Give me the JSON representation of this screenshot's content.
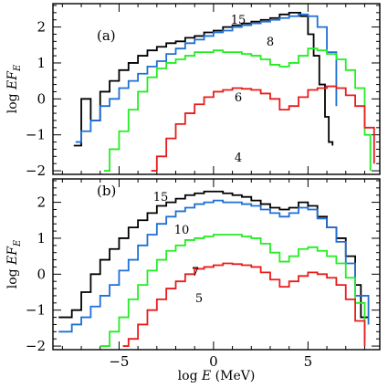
{
  "chart_data": {
    "type": "line",
    "xlabel": "log  E  (MeV)",
    "xlim": [
      -8.5,
      8.8
    ],
    "x_ticks": [
      -5,
      0,
      5
    ],
    "ylim": [
      -2.1,
      2.65
    ],
    "y_ticks": [
      -2,
      -1,
      0,
      1,
      2
    ],
    "grid": false,
    "panels": [
      {
        "label": "(a)",
        "ylabel": "log  EF_E",
        "series": [
          {
            "name": "15",
            "color": "#000000",
            "x": [
              -7.4,
              -7.0,
              -6.5,
              -6.0,
              -5.5,
              -5.0,
              -4.5,
              -4.0,
              -3.5,
              -3.0,
              -2.5,
              -2.0,
              -1.5,
              -1.0,
              -0.5,
              0,
              0.5,
              1.0,
              1.5,
              2.0,
              2.5,
              3.0,
              3.5,
              4.0,
              4.3,
              4.6,
              5.0,
              5.3,
              5.6,
              5.9,
              6.1,
              6.3
            ],
            "y": [
              -1.3,
              0.0,
              -0.6,
              0.2,
              0.5,
              0.8,
              1.0,
              1.2,
              1.35,
              1.45,
              1.55,
              1.6,
              1.7,
              1.75,
              1.85,
              1.9,
              2.0,
              2.05,
              2.1,
              2.15,
              2.2,
              2.25,
              2.35,
              2.4,
              2.4,
              2.3,
              1.8,
              1.2,
              0.4,
              -0.5,
              -1.2,
              -1.3
            ]
          },
          {
            "name": "8",
            "color": "#1f6fd6",
            "x": [
              -7.3,
              -7.0,
              -6.5,
              -6.0,
              -5.5,
              -5.0,
              -4.5,
              -4.0,
              -3.5,
              -3.0,
              -2.5,
              -2.0,
              -1.5,
              -1.0,
              -0.5,
              0,
              0.5,
              1.0,
              1.5,
              2.0,
              2.5,
              3.0,
              3.5,
              4.0,
              4.5,
              5.0,
              5.5,
              6.0,
              6.5
            ],
            "y": [
              -1.2,
              -0.9,
              -0.6,
              -0.2,
              0.0,
              0.3,
              0.5,
              0.7,
              0.9,
              1.05,
              1.25,
              1.4,
              1.55,
              1.65,
              1.75,
              1.85,
              1.9,
              2.0,
              2.05,
              2.1,
              2.15,
              2.2,
              2.25,
              2.3,
              2.35,
              2.3,
              2.0,
              1.3,
              -0.2
            ]
          },
          {
            "name": "6",
            "color": "#22ee22",
            "x": [
              -5.8,
              -5.5,
              -5.0,
              -4.5,
              -4.0,
              -3.5,
              -3.0,
              -2.5,
              -2.0,
              -1.5,
              -1.0,
              -0.5,
              0,
              0.5,
              1.0,
              1.5,
              2.0,
              2.5,
              3.0,
              3.5,
              4.0,
              4.5,
              5.0,
              5.5,
              6.0,
              6.5,
              7.0,
              7.5,
              8.0,
              8.3
            ],
            "y": [
              -2.0,
              -1.4,
              -0.9,
              -0.3,
              0.2,
              0.6,
              0.85,
              1.0,
              1.1,
              1.2,
              1.3,
              1.3,
              1.35,
              1.3,
              1.3,
              1.25,
              1.2,
              1.1,
              0.95,
              0.9,
              1.0,
              1.2,
              1.4,
              1.35,
              1.25,
              1.1,
              0.8,
              0.3,
              -1.0,
              -2.0
            ]
          },
          {
            "name": "4",
            "color": "#e81c1c",
            "x": [
              -3.3,
              -3.0,
              -2.5,
              -2.0,
              -1.5,
              -1.0,
              -0.5,
              0,
              0.5,
              1.0,
              1.5,
              2.0,
              2.5,
              3.0,
              3.5,
              4.0,
              4.5,
              5.0,
              5.5,
              6.0,
              6.5,
              7.0,
              7.5,
              8.0,
              8.5
            ],
            "y": [
              -2.0,
              -1.6,
              -1.1,
              -0.7,
              -0.4,
              -0.15,
              0.05,
              0.2,
              0.25,
              0.3,
              0.28,
              0.25,
              0.15,
              0.0,
              -0.3,
              -0.2,
              0.05,
              0.25,
              0.3,
              0.35,
              0.3,
              0.1,
              -0.2,
              -0.8,
              -1.8
            ]
          }
        ]
      },
      {
        "label": "(b)",
        "ylabel": "log  EF_E",
        "series": [
          {
            "name": "15",
            "color": "#000000",
            "x": [
              -8.2,
              -7.5,
              -7.0,
              -6.5,
              -6.0,
              -5.5,
              -5.0,
              -4.5,
              -4.0,
              -3.5,
              -3.0,
              -2.5,
              -2.0,
              -1.5,
              -1.0,
              -0.5,
              0,
              0.5,
              1.0,
              1.5,
              2.0,
              2.5,
              3.0,
              3.5,
              4.0,
              4.5,
              5.0,
              5.5,
              6.0,
              6.5,
              7.0,
              7.5,
              7.8,
              8.2
            ],
            "y": [
              -1.2,
              -1.0,
              -0.5,
              0.0,
              0.4,
              0.7,
              1.0,
              1.3,
              1.5,
              1.7,
              1.9,
              2.0,
              2.1,
              2.2,
              2.25,
              2.3,
              2.3,
              2.25,
              2.2,
              2.15,
              2.05,
              1.95,
              1.85,
              1.8,
              1.85,
              2.0,
              1.9,
              1.6,
              1.3,
              1.0,
              0.5,
              -0.3,
              -1.2,
              -1.2
            ]
          },
          {
            "name": "10",
            "color": "#1f6fd6",
            "x": [
              -8.2,
              -7.5,
              -7.0,
              -6.5,
              -6.0,
              -5.5,
              -5.0,
              -4.5,
              -4.0,
              -3.5,
              -3.0,
              -2.5,
              -2.0,
              -1.5,
              -1.0,
              -0.5,
              0,
              0.5,
              1.0,
              1.5,
              2.0,
              2.5,
              3.0,
              3.5,
              4.0,
              4.5,
              5.0,
              5.5,
              6.0,
              6.5,
              7.0,
              7.5,
              8.2
            ],
            "y": [
              -1.6,
              -1.4,
              -1.2,
              -0.9,
              -0.6,
              -0.3,
              0.1,
              0.4,
              0.8,
              1.1,
              1.4,
              1.6,
              1.75,
              1.85,
              1.95,
              2.0,
              2.05,
              2.0,
              2.0,
              1.95,
              1.9,
              1.8,
              1.7,
              1.6,
              1.7,
              1.85,
              1.8,
              1.55,
              1.3,
              0.9,
              0.3,
              -0.6,
              -1.4
            ]
          },
          {
            "name": "7",
            "color": "#22ee22",
            "x": [
              -6.0,
              -5.5,
              -5.0,
              -4.5,
              -4.0,
              -3.5,
              -3.0,
              -2.5,
              -2.0,
              -1.5,
              -1.0,
              -0.5,
              0,
              0.5,
              1.0,
              1.5,
              2.0,
              2.5,
              3.0,
              3.5,
              4.0,
              4.5,
              5.0,
              5.5,
              6.0,
              6.5,
              7.0,
              7.5,
              8.0
            ],
            "y": [
              -2.0,
              -1.6,
              -1.2,
              -0.7,
              -0.3,
              0.1,
              0.4,
              0.65,
              0.8,
              0.95,
              1.0,
              1.05,
              1.1,
              1.1,
              1.1,
              1.05,
              1.0,
              0.85,
              0.6,
              0.35,
              0.5,
              0.7,
              0.75,
              0.65,
              0.5,
              0.3,
              -0.1,
              -0.8,
              -1.8
            ]
          },
          {
            "name": "5",
            "color": "#e81c1c",
            "x": [
              -4.8,
              -4.5,
              -4.0,
              -3.5,
              -3.0,
              -2.5,
              -2.0,
              -1.5,
              -1.0,
              -0.5,
              0,
              0.5,
              1.0,
              1.5,
              2.0,
              2.5,
              3.0,
              3.5,
              4.0,
              4.5,
              5.0,
              5.5,
              6.0,
              6.5,
              7.0,
              7.5,
              8.0
            ],
            "y": [
              -2.0,
              -1.8,
              -1.4,
              -1.0,
              -0.7,
              -0.4,
              -0.2,
              0.0,
              0.15,
              0.2,
              0.25,
              0.3,
              0.28,
              0.25,
              0.2,
              0.05,
              -0.15,
              -0.35,
              -0.2,
              -0.05,
              0.05,
              0.0,
              -0.1,
              -0.3,
              -0.7,
              -1.3,
              -2.0
            ]
          }
        ]
      }
    ]
  }
}
